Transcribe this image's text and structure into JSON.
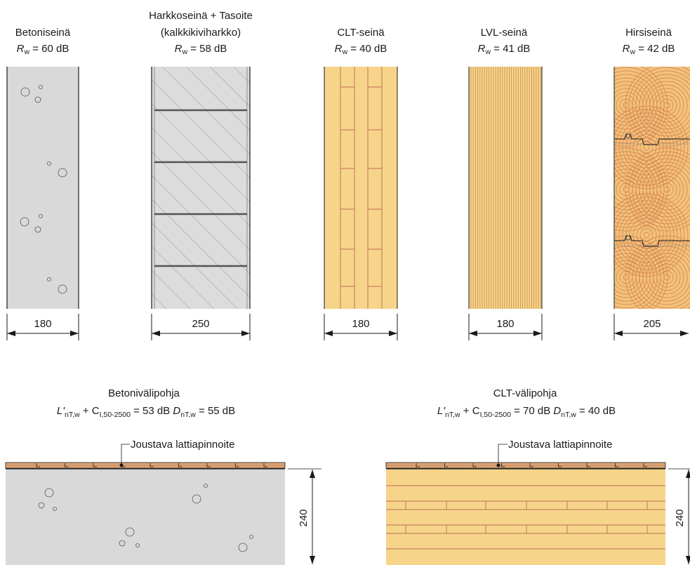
{
  "walls": [
    {
      "id": "concrete",
      "title_lines": [
        "Betoniseinä"
      ],
      "rating": {
        "sym": "R",
        "sub": "w",
        "value": " = 60 dB"
      },
      "thickness": "180"
    },
    {
      "id": "block",
      "title_lines": [
        "Harkkoseinä + Tasoite",
        "(kalkkikiviharkko)"
      ],
      "rating": {
        "sym": "R",
        "sub": "w",
        "value": " = 58 dB"
      },
      "thickness": "250"
    },
    {
      "id": "clt",
      "title_lines": [
        "CLT-seinä"
      ],
      "rating": {
        "sym": "R",
        "sub": "w",
        "value": " = 40 dB"
      },
      "thickness": "180"
    },
    {
      "id": "lvl",
      "title_lines": [
        "LVL-seinä"
      ],
      "rating": {
        "sym": "R",
        "sub": "w",
        "value": " = 41 dB"
      },
      "thickness": "180"
    },
    {
      "id": "log",
      "title_lines": [
        "Hirsiseinä"
      ],
      "rating": {
        "sym": "R",
        "sub": "w",
        "value": " = 42 dB"
      },
      "thickness": "205"
    }
  ],
  "floors": [
    {
      "id": "concrete-floor",
      "title": "Betonivälipohja",
      "L_sym": "L'",
      "L_sub": "nT,w",
      "C_sym": " + C",
      "C_sub": "I,50-2500",
      "L_value": " = 53 dB",
      "D_sym": "D",
      "D_sub": "nT,w",
      "D_value": " = 55 dB",
      "callout": "Joustava lattiapinnoite",
      "thickness": "240"
    },
    {
      "id": "clt-floor",
      "title": "CLT-välipohja",
      "L_sym": "L'",
      "L_sub": "nT,w",
      "C_sym": " + C",
      "C_sub": "I,50-2500",
      "L_value": " = 70 dB",
      "D_sym": "D",
      "D_sub": "nT,w",
      "D_value": " = 40 dB",
      "callout": "Joustava lattiapinnoite",
      "thickness": "240"
    }
  ],
  "colors": {
    "concrete": "#d9d9d9",
    "timber": "#f6d58a",
    "timber_line": "#c06a55",
    "log": "#f2c27a",
    "line": "#1a1a1a"
  }
}
